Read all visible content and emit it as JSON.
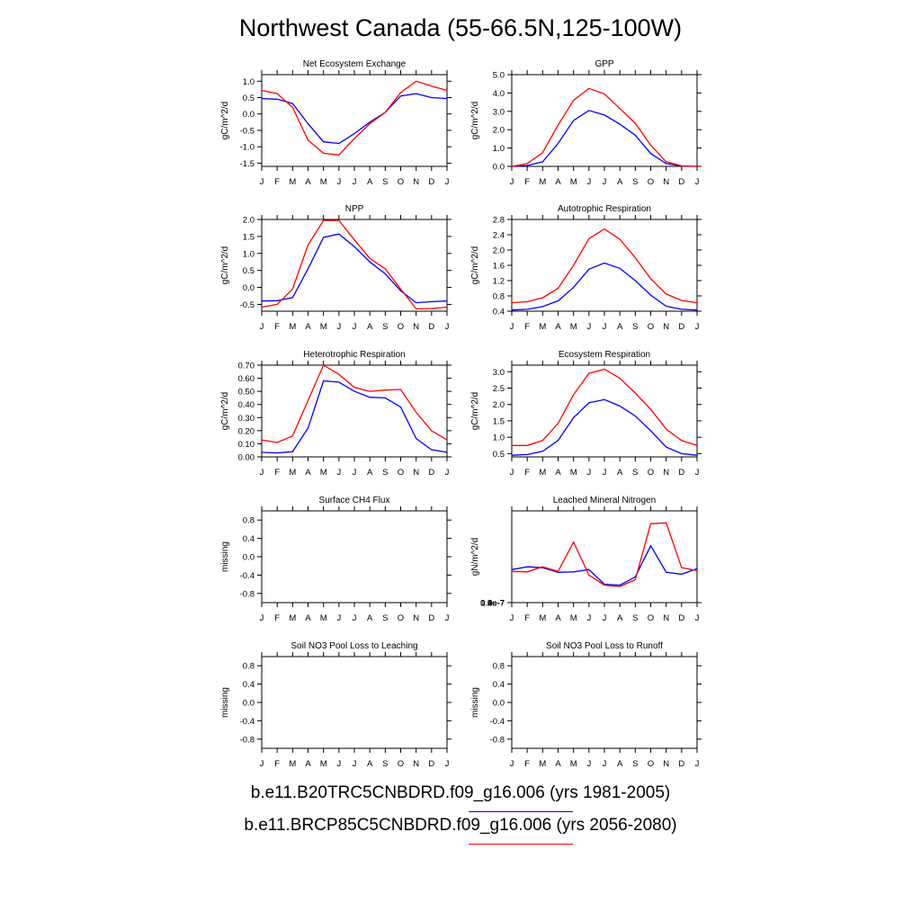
{
  "title": "Northwest Canada (55-66.5N,125-100W)",
  "months": [
    "J",
    "F",
    "M",
    "A",
    "M",
    "J",
    "J",
    "A",
    "S",
    "O",
    "N",
    "D",
    "J"
  ],
  "colors": {
    "historical": "#0000ff",
    "future": "#ff0000"
  },
  "legend": [
    {
      "label": "b.e11.B20TRC5CNBDRD.f09_g16.006 (yrs 1981-2005)",
      "color": "#0000ff"
    },
    {
      "label": "b.e11.BRCP85C5CNBDRD.f09_g16.006 (yrs 2056-2080)",
      "color": "#ff0000"
    }
  ],
  "chart_data": [
    {
      "type": "line",
      "title": "Net Ecosystem Exchange",
      "ylabel": "gC/m^2/d",
      "ylim": [
        -1.6,
        1.2
      ],
      "yticks": [
        "1.0",
        "0.5",
        "0.0",
        "-0.5",
        "-1.0",
        "-1.5"
      ],
      "series": [
        {
          "values": [
            0.47,
            0.45,
            0.32,
            -0.3,
            -0.85,
            -0.9,
            -0.6,
            -0.25,
            0.05,
            0.55,
            0.62,
            0.5,
            0.47
          ]
        },
        {
          "values": [
            0.72,
            0.62,
            0.2,
            -0.8,
            -1.2,
            -1.25,
            -0.75,
            -0.3,
            0.05,
            0.65,
            1.0,
            0.85,
            0.72
          ]
        }
      ]
    },
    {
      "type": "line",
      "title": "GPP",
      "ylabel": "gC/m^2/d",
      "ylim": [
        0,
        5
      ],
      "yticks": [
        "5.0",
        "4.0",
        "3.0",
        "2.0",
        "1.0",
        "0.0"
      ],
      "series": [
        {
          "values": [
            0.0,
            0.05,
            0.25,
            1.25,
            2.5,
            3.05,
            2.8,
            2.3,
            1.7,
            0.7,
            0.15,
            0.02,
            0.0
          ]
        },
        {
          "values": [
            0.0,
            0.15,
            0.75,
            2.25,
            3.6,
            4.25,
            3.95,
            3.15,
            2.35,
            1.15,
            0.25,
            0.03,
            0.0
          ]
        }
      ]
    },
    {
      "type": "line",
      "title": "NPP",
      "ylabel": "gC/m^2/d",
      "ylim": [
        -0.7,
        2.0
      ],
      "yticks": [
        "2.0",
        "1.5",
        "1.0",
        "0.5",
        "0.0",
        "-0.5"
      ],
      "series": [
        {
          "values": [
            -0.4,
            -0.39,
            -0.3,
            0.55,
            1.47,
            1.57,
            1.2,
            0.75,
            0.4,
            -0.1,
            -0.45,
            -0.42,
            -0.4
          ]
        },
        {
          "values": [
            -0.58,
            -0.5,
            -0.05,
            1.25,
            1.97,
            1.97,
            1.4,
            0.85,
            0.55,
            -0.05,
            -0.63,
            -0.62,
            -0.58
          ]
        }
      ]
    },
    {
      "type": "line",
      "title": "Autotrophic Respiration",
      "ylabel": "gC/m^2/d",
      "ylim": [
        0.4,
        2.8
      ],
      "yticks": [
        "2.8",
        "2.4",
        "2.0",
        "1.6",
        "1.2",
        "0.8",
        "0.4"
      ],
      "series": [
        {
          "values": [
            0.43,
            0.45,
            0.52,
            0.67,
            1.02,
            1.5,
            1.66,
            1.52,
            1.2,
            0.82,
            0.53,
            0.45,
            0.43
          ]
        },
        {
          "values": [
            0.62,
            0.65,
            0.75,
            1.0,
            1.6,
            2.3,
            2.55,
            2.28,
            1.8,
            1.25,
            0.85,
            0.68,
            0.62
          ]
        }
      ]
    },
    {
      "type": "line",
      "title": "Heterotrophic Respiration",
      "ylabel": "gC/m^2/d",
      "ylim": [
        0,
        0.7
      ],
      "yticks": [
        "0.70",
        "0.60",
        "0.50",
        "0.40",
        "0.30",
        "0.20",
        "0.10",
        "0.00"
      ],
      "series": [
        {
          "values": [
            0.035,
            0.03,
            0.04,
            0.22,
            0.58,
            0.57,
            0.5,
            0.455,
            0.45,
            0.38,
            0.14,
            0.055,
            0.035
          ]
        },
        {
          "values": [
            0.13,
            0.11,
            0.16,
            0.43,
            0.7,
            0.63,
            0.53,
            0.5,
            0.51,
            0.515,
            0.34,
            0.2,
            0.13
          ]
        }
      ]
    },
    {
      "type": "line",
      "title": "Ecosystem Respiration",
      "ylabel": "gC/m^2/d",
      "ylim": [
        0.4,
        3.2
      ],
      "yticks": [
        "3.0",
        "2.5",
        "2.0",
        "1.5",
        "1.0",
        "0.5"
      ],
      "series": [
        {
          "values": [
            0.45,
            0.47,
            0.57,
            0.9,
            1.6,
            2.05,
            2.15,
            1.95,
            1.65,
            1.2,
            0.7,
            0.5,
            0.45
          ]
        },
        {
          "values": [
            0.75,
            0.75,
            0.9,
            1.42,
            2.3,
            2.95,
            3.08,
            2.8,
            2.35,
            1.85,
            1.25,
            0.9,
            0.75
          ]
        }
      ]
    },
    {
      "type": "line",
      "title": "Surface CH4 Flux",
      "ylabel": "missing",
      "ylim": [
        -1.0,
        1.0
      ],
      "yticks": [
        "0.8",
        "0.4",
        "0.0",
        "-0.4",
        "-0.8"
      ],
      "series": []
    },
    {
      "type": "line",
      "title": "Leached Mineral Nitrogen",
      "ylabel": "gN/m^2/d",
      "ylim": [
        0,
        1.0
      ],
      "yticks": [
        "1.0e-7",
        "0.8e-7",
        "0.6e-7",
        "0.4e-7",
        "0.2e-7",
        "0.0e-7"
      ],
      "series": [
        {
          "values": [
            0.36,
            0.39,
            0.38,
            0.33,
            0.335,
            0.36,
            0.2,
            0.19,
            0.28,
            0.62,
            0.33,
            0.31,
            0.37
          ]
        },
        {
          "values": [
            0.34,
            0.335,
            0.39,
            0.34,
            0.66,
            0.3,
            0.19,
            0.175,
            0.25,
            0.86,
            0.87,
            0.38,
            0.35
          ]
        }
      ]
    },
    {
      "type": "line",
      "title": "Soil NO3 Pool Loss to Leaching",
      "ylabel": "missing",
      "ylim": [
        -1.0,
        1.0
      ],
      "yticks": [
        "0.8",
        "0.4",
        "0.0",
        "-0.4",
        "-0.8"
      ],
      "series": []
    },
    {
      "type": "line",
      "title": "Soil NO3 Pool Loss to Runoff",
      "ylabel": "missing",
      "ylim": [
        -1.0,
        1.0
      ],
      "yticks": [
        "0.8",
        "0.4",
        "0.0",
        "-0.4",
        "-0.8"
      ],
      "series": []
    }
  ]
}
